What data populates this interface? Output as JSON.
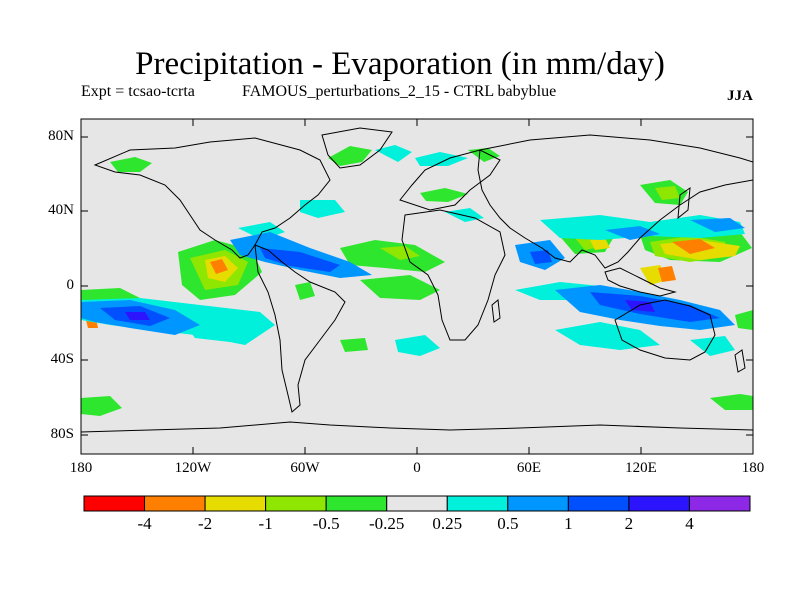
{
  "title": "Precipitation - Evaporation (in mm/day)",
  "subtitle_left": "Expt = tcsao-tcrta",
  "subtitle_mid": "FAMOUS_perturbations_2_15 - CTRL babyblue",
  "season": "JJA",
  "axes": {
    "lat_ticks": [
      "80N",
      "40N",
      "0",
      "40S",
      "80S"
    ],
    "lon_ticks": [
      "180",
      "120W",
      "60W",
      "0",
      "60E",
      "120E",
      "180"
    ]
  },
  "colorbar": {
    "colors": [
      "#ff0000",
      "#ff7f00",
      "#e6dc00",
      "#8fe600",
      "#2ee62e",
      "#e6e6e6",
      "#00f0dc",
      "#0096ff",
      "#0050ff",
      "#2d14ff",
      "#8c28e6"
    ],
    "labels": [
      "-4",
      "-2",
      "-1",
      "-0.5",
      "-0.25",
      "0.25",
      "0.5",
      "1",
      "2",
      "4"
    ]
  },
  "colors": {
    "land_background": "#e6e6e6",
    "coastline": "#000000"
  }
}
